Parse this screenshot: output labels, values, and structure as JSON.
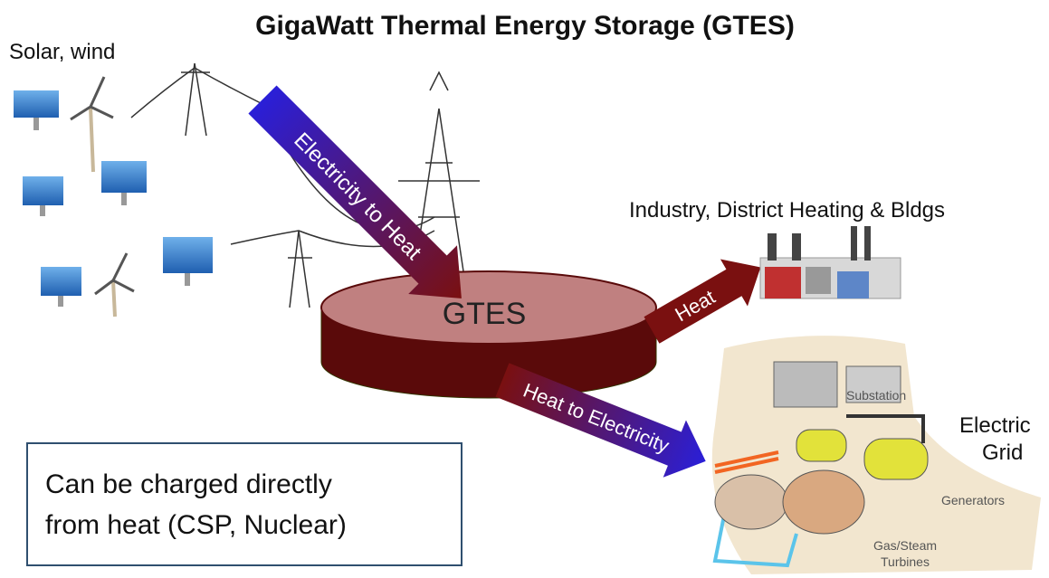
{
  "title": "GigaWatt Thermal Energy Storage (GTES)",
  "sources": "Solar, wind",
  "storage": "GTES",
  "arrows": {
    "charge": "Electricity to Heat",
    "heat": "Heat",
    "discharge": "Heat to Electricity"
  },
  "industry": "Industry, District Heating & Bldgs",
  "grid": {
    "label": [
      "Electric",
      "Grid"
    ],
    "substation": "Substation",
    "generators": "Generators",
    "turbines": [
      "Gas/Steam",
      "Turbines"
    ]
  },
  "note": [
    "Can be charged directly",
    "from heat (CSP, Nuclear)"
  ]
}
